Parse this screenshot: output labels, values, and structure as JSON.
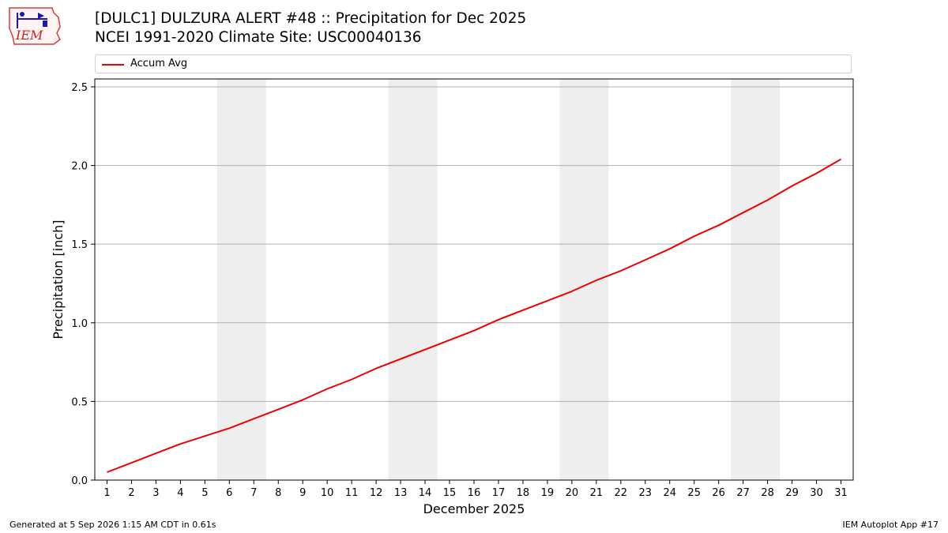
{
  "header": {
    "title_line1": "[DULC1] DULZURA ALERT #48 :: Precipitation for Dec 2025",
    "title_line2": "NCEI 1991-2020 Climate Site: USC00040136"
  },
  "logo": {
    "text": "IEM"
  },
  "footer": {
    "generated": "Generated at 5 Sep 2026 1:15 AM CDT in 0.61s",
    "app": "IEM Autoplot App #17"
  },
  "colors": {
    "series": "#ee0000",
    "weekend_band": "#eeeeee",
    "grid": "#b0b0b0"
  },
  "chart_data": {
    "type": "line",
    "xlabel": "December 2025",
    "ylabel": "Precipitation [inch]",
    "xlim": [
      0.5,
      31.5
    ],
    "ylim": [
      0,
      2.55
    ],
    "x_ticks": [
      1,
      2,
      3,
      4,
      5,
      6,
      7,
      8,
      9,
      10,
      11,
      12,
      13,
      14,
      15,
      16,
      17,
      18,
      19,
      20,
      21,
      22,
      23,
      24,
      25,
      26,
      27,
      28,
      29,
      30,
      31
    ],
    "y_ticks": [
      "0.0",
      "0.5",
      "1.0",
      "1.5",
      "2.0",
      "2.5"
    ],
    "grid": "horizontal",
    "weekend_bands": [
      [
        5.5,
        7.5
      ],
      [
        12.5,
        14.5
      ],
      [
        19.5,
        21.5
      ],
      [
        26.5,
        28.5
      ]
    ],
    "legend_position": "top",
    "series": [
      {
        "name": "Accum Avg",
        "x": [
          1,
          2,
          3,
          4,
          5,
          6,
          7,
          8,
          9,
          10,
          11,
          12,
          13,
          14,
          15,
          16,
          17,
          18,
          19,
          20,
          21,
          22,
          23,
          24,
          25,
          26,
          27,
          28,
          29,
          30,
          31
        ],
        "values": [
          0.05,
          0.11,
          0.17,
          0.23,
          0.28,
          0.33,
          0.39,
          0.45,
          0.51,
          0.58,
          0.64,
          0.71,
          0.77,
          0.83,
          0.89,
          0.95,
          1.02,
          1.08,
          1.14,
          1.2,
          1.27,
          1.33,
          1.4,
          1.47,
          1.55,
          1.62,
          1.7,
          1.78,
          1.87,
          1.95,
          2.04
        ]
      }
    ]
  }
}
